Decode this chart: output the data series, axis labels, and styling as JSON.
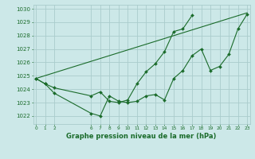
{
  "title": "Graphe pression niveau de la mer (hPa)",
  "bg_color": "#cce8e8",
  "grid_color": "#aacccc",
  "line_color": "#1a6b2a",
  "ylim": [
    1021.4,
    1030.3
  ],
  "yticks": [
    1022,
    1023,
    1024,
    1025,
    1026,
    1027,
    1028,
    1029,
    1030
  ],
  "xlim": [
    -0.3,
    23.3
  ],
  "xticks": [
    0,
    1,
    2,
    6,
    7,
    8,
    9,
    10,
    11,
    12,
    13,
    14,
    15,
    16,
    17,
    18,
    19,
    20,
    21,
    22,
    23
  ],
  "line1_x": [
    0,
    1,
    2,
    6,
    7,
    8,
    9,
    10,
    11,
    12,
    13,
    14,
    15,
    16,
    17,
    18,
    19,
    20,
    21,
    22,
    23
  ],
  "line1_y": [
    1024.8,
    1024.4,
    1023.7,
    1022.2,
    1022.0,
    1023.5,
    1023.1,
    1023.0,
    1023.1,
    1023.5,
    1023.6,
    1023.2,
    1024.8,
    1025.4,
    1026.5,
    1027.0,
    1025.4,
    1025.7,
    1026.6,
    1028.5,
    1029.6
  ],
  "line2_x": [
    0,
    1,
    2,
    6,
    7,
    8,
    9,
    10,
    11,
    12,
    13,
    14,
    15,
    16,
    17
  ],
  "line2_y": [
    1024.8,
    1024.4,
    1024.1,
    1023.5,
    1023.8,
    1023.1,
    1023.0,
    1023.2,
    1024.4,
    1025.3,
    1025.9,
    1026.8,
    1028.3,
    1028.5,
    1029.5
  ],
  "line3_x": [
    0,
    23
  ],
  "line3_y": [
    1024.8,
    1029.7
  ]
}
